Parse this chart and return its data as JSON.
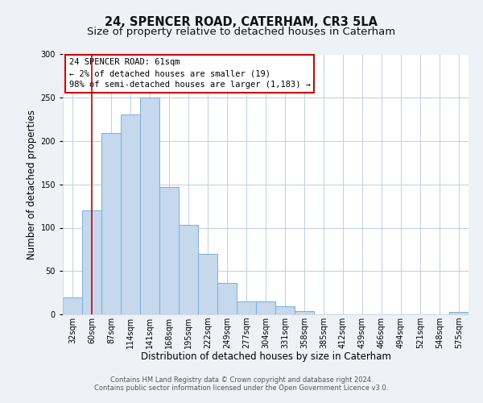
{
  "title": "24, SPENCER ROAD, CATERHAM, CR3 5LA",
  "subtitle": "Size of property relative to detached houses in Caterham",
  "xlabel": "Distribution of detached houses by size in Caterham",
  "ylabel": "Number of detached properties",
  "bar_labels": [
    "32sqm",
    "60sqm",
    "87sqm",
    "114sqm",
    "141sqm",
    "168sqm",
    "195sqm",
    "222sqm",
    "249sqm",
    "277sqm",
    "304sqm",
    "331sqm",
    "358sqm",
    "385sqm",
    "412sqm",
    "439sqm",
    "466sqm",
    "494sqm",
    "521sqm",
    "548sqm",
    "575sqm"
  ],
  "bar_heights": [
    20,
    120,
    209,
    231,
    250,
    147,
    103,
    70,
    36,
    15,
    15,
    9,
    4,
    0,
    0,
    0,
    0,
    0,
    0,
    0,
    3
  ],
  "bar_color": "#c5d8ed",
  "bar_edge_color": "#7bafd4",
  "vline_x_index": 1,
  "vline_color": "#cc0000",
  "annotation_box_text": "24 SPENCER ROAD: 61sqm\n← 2% of detached houses are smaller (19)\n98% of semi-detached houses are larger (1,183) →",
  "annotation_box_edge_color": "#cc0000",
  "ylim": [
    0,
    300
  ],
  "yticks": [
    0,
    50,
    100,
    150,
    200,
    250,
    300
  ],
  "background_color": "#eef2f7",
  "plot_bg_color": "#ffffff",
  "grid_color": "#c0cfe0",
  "footer_line1": "Contains HM Land Registry data © Crown copyright and database right 2024.",
  "footer_line2": "Contains public sector information licensed under the Open Government Licence v3.0.",
  "title_fontsize": 10.5,
  "subtitle_fontsize": 9.5,
  "xlabel_fontsize": 8.5,
  "ylabel_fontsize": 8.5,
  "tick_fontsize": 7,
  "annotation_fontsize": 7.5,
  "footer_fontsize": 6
}
